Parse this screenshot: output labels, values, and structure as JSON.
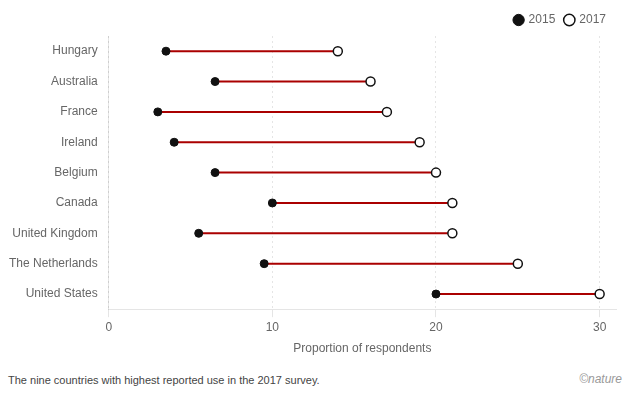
{
  "chart_data": {
    "type": "dumbbell",
    "orientation": "horizontal",
    "xlabel": "Proportion of respondents",
    "categories": [
      "Hungary",
      "Australia",
      "France",
      "Ireland",
      "Belgium",
      "Canada",
      "United Kingdom",
      "The Netherlands",
      "United States"
    ],
    "series": [
      {
        "name": "2015",
        "color": "#111111",
        "marker": "circle",
        "values": [
          3.5,
          6.5,
          3,
          4,
          6.5,
          10,
          5.5,
          9.5,
          20
        ]
      },
      {
        "name": "2017",
        "color": "#111111",
        "marker": "ring",
        "values": [
          14,
          16,
          17,
          19,
          20,
          21,
          21,
          25,
          30
        ]
      }
    ],
    "color": "#aa0000",
    "xlim": [
      0,
      31
    ],
    "xticks": [
      0,
      10,
      20,
      30
    ],
    "grid": "x",
    "legend": "upper right",
    "annotations": [
      "The nine countries with highest reported use in the 2017 survey.",
      "©nature"
    ]
  }
}
